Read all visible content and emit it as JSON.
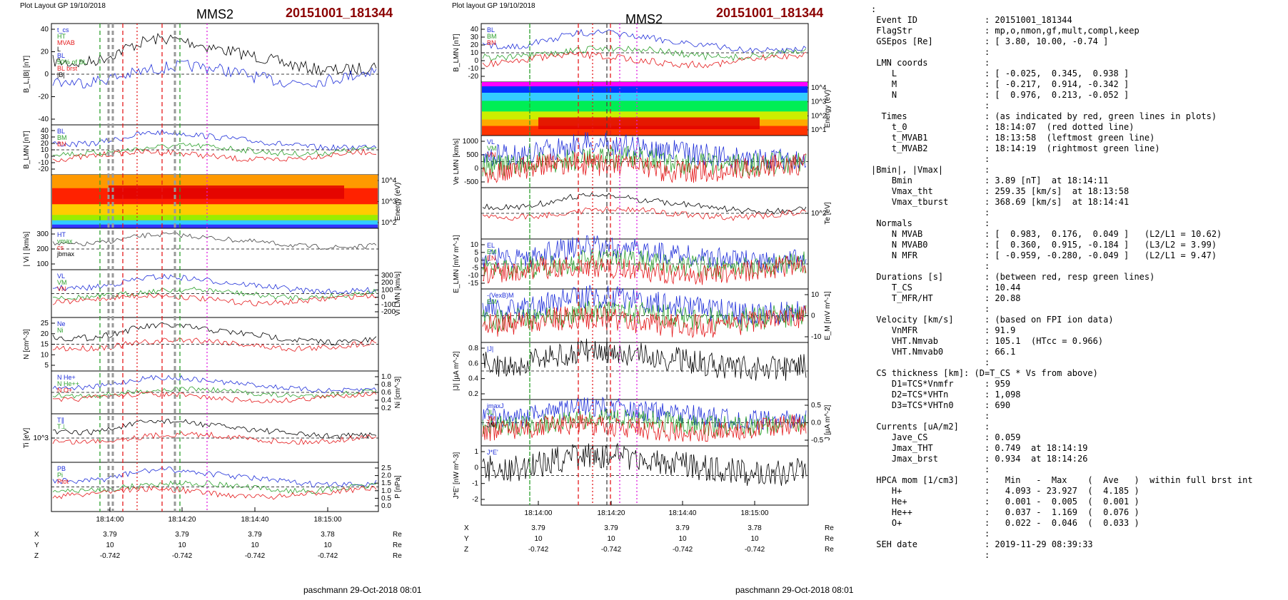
{
  "left": {
    "layout_label": "Plot Layout GP 19/10/2018",
    "spacecraft": "MMS2",
    "event": "20151001_181344",
    "footer": "paschmann 29-Oct-2018 08:01",
    "panels": [
      {
        "ylabel": "B_L,|B| [nT]",
        "yticks": [
          "40",
          "20",
          "0",
          "-20",
          "-40"
        ],
        "legend": [
          "t_cs",
          "HT",
          "MVAB",
          "L",
          "BL",
          "50% of BL",
          "BL brst",
          "|B|"
        ]
      },
      {
        "ylabel": "B_LMN [nT]",
        "yticks": [
          "40",
          "30",
          "20",
          "10",
          "0",
          "-10",
          "-20"
        ],
        "labels": [
          "BL",
          "BM",
          "BN"
        ]
      },
      {
        "ylabel": "Energy (eV)",
        "yticks": [
          "10^4",
          "10^3",
          "10^2"
        ]
      },
      {
        "ylabel": "| Vi | [km/s]",
        "yticks": [
          "300",
          "200",
          "100"
        ],
        "legend": [
          "HT",
          "vmax",
          "cs",
          "jbmax"
        ]
      },
      {
        "ylabel": "Vi LMN [km/s]",
        "yticks": [
          "300",
          "200",
          "100",
          "0",
          "-100",
          "-200"
        ],
        "labels": [
          "VL",
          "VM",
          "VN"
        ]
      },
      {
        "ylabel": "N [cm^-3]",
        "yticks": [
          "25",
          "20",
          "15",
          "10",
          "5"
        ],
        "legend": [
          "Ne",
          "Ni"
        ]
      },
      {
        "ylabel": "Ni [cm^-3]",
        "yticks": [
          "1.0",
          "0.8",
          "0.6",
          "0.4",
          "0.2"
        ],
        "legend": [
          "N He+",
          "N He++",
          "N O+"
        ]
      },
      {
        "ylabel": "Ti [eV]",
        "yticks": [
          "10^3"
        ],
        "labels": [
          "T∥",
          "T⊥"
        ]
      },
      {
        "ylabel": "P [nPa]",
        "yticks": [
          "2.5",
          "2.0",
          "1.5",
          "1.0",
          "0.5",
          "0.0"
        ],
        "labels": [
          "PB",
          "Pi",
          "Ptot"
        ]
      }
    ],
    "time_ticks": [
      "18:14:00",
      "18:14:20",
      "18:14:40",
      "18:15:00"
    ],
    "pos": {
      "X": [
        "3.79",
        "3.79",
        "3.79",
        "3.78"
      ],
      "Y": [
        "10",
        "10",
        "10",
        "10"
      ],
      "Z": [
        "-0.742",
        "-0.742",
        "-0.742",
        "-0.742"
      ],
      "unit": "Re"
    }
  },
  "mid": {
    "layout_label": "Plot layout GP 19/10/2018",
    "spacecraft": "MMS2",
    "event": "20151001_181344",
    "footer": "paschmann 29-Oct-2018 08:01",
    "panels": [
      {
        "ylabel": "B_LMN [nT]",
        "yticks": [
          "40",
          "30",
          "20",
          "10",
          "0",
          "-10",
          "-20"
        ],
        "labels": [
          "BL",
          "BM",
          "BN"
        ]
      },
      {
        "ylabel": "Energy (eV)",
        "yticks": [
          "10^4",
          "10^3",
          "10^2",
          "10^1"
        ]
      },
      {
        "ylabel": "Ve LMN [km/s]",
        "yticks": [
          "1000",
          "500",
          "0",
          "-500"
        ],
        "labels": [
          "VL",
          "VM",
          "VN"
        ]
      },
      {
        "ylabel": "Te [eV]",
        "yticks": [
          "10^2"
        ]
      },
      {
        "ylabel": "E_LMN [mV m^-1]",
        "yticks": [
          "10",
          "5",
          "0",
          "-5",
          "-10",
          "-15"
        ],
        "labels": [
          "EL",
          "EM",
          "EN"
        ]
      },
      {
        "ylabel": "E_M [mV m^-1]",
        "yticks": [
          "10",
          "0",
          "-10"
        ],
        "labels": [
          "-(VexB)M",
          "EM"
        ]
      },
      {
        "ylabel": "|J| [µA m^-2]",
        "yticks": [
          "0.8",
          "0.6",
          "0.4",
          "0.2"
        ],
        "labels": [
          "|J|"
        ]
      },
      {
        "ylabel": "J [µA m^-2]",
        "yticks": [
          "0.5",
          "0.0",
          "-0.5"
        ],
        "labels": [
          "jmaxJ",
          "JL",
          "JM",
          "JN"
        ]
      },
      {
        "ylabel": "J*E' [nW m^-3]",
        "yticks": [
          "1",
          "0",
          "-1",
          "-2"
        ],
        "labels": [
          "J*E'"
        ]
      }
    ],
    "time_ticks": [
      "18:14:00",
      "18:14:20",
      "18:14:40",
      "18:15:00"
    ],
    "pos": {
      "X": [
        "3.79",
        "3.79",
        "3.79",
        "3.78"
      ],
      "Y": [
        "10",
        "10",
        "10",
        "10"
      ],
      "Z": [
        "-0.742",
        "-0.742",
        "-0.742",
        "-0.742"
      ],
      "unit": "Re"
    }
  },
  "summary_lines": [
    ":",
    " Event ID             : 20151001_181344",
    " FlagStr              : mp,o,nmon,gf,mult,compl,keep",
    " GSEpos [Re]          : [ 3.80, 10.00, -0.74 ]",
    "                      :",
    " LMN coords           :",
    "    L                 : [ -0.025,  0.345,  0.938 ]",
    "    M                 : [ -0.217,  0.914, -0.342 ]",
    "    N                 : [  0.976,  0.213, -0.052 ]",
    "                      :",
    "  Times               : (as indicated by red, green lines in plots)",
    "    t_0               : 18:14:07  (red dotted line)",
    "    t_MVAB1           : 18:13:58  (leftmost green line)",
    "    t_MVAB2           : 18:14:19  (rightmost green line)",
    "                      :",
    "|Bmin|, |Vmax|        :",
    "    Bmin              : 3.89 [nT]  at 18:14:11",
    "    Vmax_tht          : 259.35 [km/s]  at 18:13:58",
    "    Vmax_tburst       : 368.69 [km/s]  at 18:14:41",
    "                      :",
    " Normals              :",
    "    N MVAB            : [  0.983,  0.176,  0.049 ]   (L2/L1 = 10.62)",
    "    N MVAB0           : [  0.360,  0.915, -0.184 ]   (L3/L2 = 3.99)",
    "    N MFR             : [ -0.959, -0.280, -0.049 ]   (L2/L1 = 9.47)",
    "                      :",
    " Durations [s]        : (between red, resp green lines)",
    "    T_CS              : 10.44",
    "    T_MFR/HT          : 20.88",
    "                      :",
    " Velocity [km/s]      : (based on FPI ion data)",
    "    VnMFR             : 91.9",
    "    VHT.Nmvab         : 105.1  (HTcc = 0.966)",
    "    VHT.Nmvab0        : 66.1",
    "                      :",
    " CS thickness [km]: (D=T_CS * Vs from above)",
    "    D1=TCS*Vnmfr      : 959",
    "    D2=TCS*VHTn       : 1,098",
    "    D3=TCS*VHTn0      : 690",
    "                      :",
    " Currents [uA/m2]     :",
    "    Jave_CS           : 0.059",
    "    Jmax_THT          : 0.749  at 18:14:19",
    "    Jmax_brst         : 0.934  at 18:14:26",
    "                      :",
    " HPCA mom [1/cm3]     :   Min   -  Max    (  Ave   )  within full brst int",
    "    H+                :   4.093 - 23.927  (  4.185 )",
    "    He+               :   0.001 -  0.005  (  0.001 )",
    "    He++              :   0.037 -  1.169  (  0.076 )",
    "    O+                :   0.022 -  0.046  (  0.033 )",
    "                      :",
    " SEH date             : 2019-11-29 08:39:33",
    "                      :"
  ],
  "chart_data": [
    {
      "type": "line",
      "title": "MMS2 20151001_181344",
      "x_ticks": [
        "18:14:00",
        "18:14:20",
        "18:14:40",
        "18:15:00"
      ],
      "panels": [
        "B_L,|B| [nT]",
        "B_LMN [nT]",
        "Energy (eV)",
        "| Vi | [km/s]",
        "Vi LMN [km/s]",
        "N [cm^-3]",
        "Ni [cm^-3]",
        "Ti [eV]",
        "P [nPa]"
      ],
      "series": [
        {
          "name": "He++",
          "panel": "Ni [cm^-3]",
          "x": [
            "18:13:51",
            "18:14:00",
            "18:14:10",
            "18:14:20",
            "18:14:30",
            "18:14:40",
            "18:14:55"
          ],
          "values": [
            0.08,
            1.0,
            0.5,
            0.75,
            0.7,
            1.05,
            0.1
          ]
        }
      ]
    },
    {
      "type": "line",
      "title": "MMS2 20151001_181344",
      "x_ticks": [
        "18:14:00",
        "18:14:20",
        "18:14:40",
        "18:15:00"
      ],
      "panels": [
        "B_LMN [nT]",
        "Energy (eV)",
        "Ve LMN [km/s]",
        "Te [eV]",
        "E_LMN [mV m^-1]",
        "E_M [mV m^-1]",
        "|J| [µA m^-2]",
        "J [µA m^-2]",
        "J*E' [nW m^-3]"
      ]
    }
  ],
  "colors": {
    "red": "#e41a1c",
    "green": "#2ca02c",
    "blue": "#1f2fd9",
    "magenta": "#e020e0",
    "darkred": "#8b0000"
  }
}
